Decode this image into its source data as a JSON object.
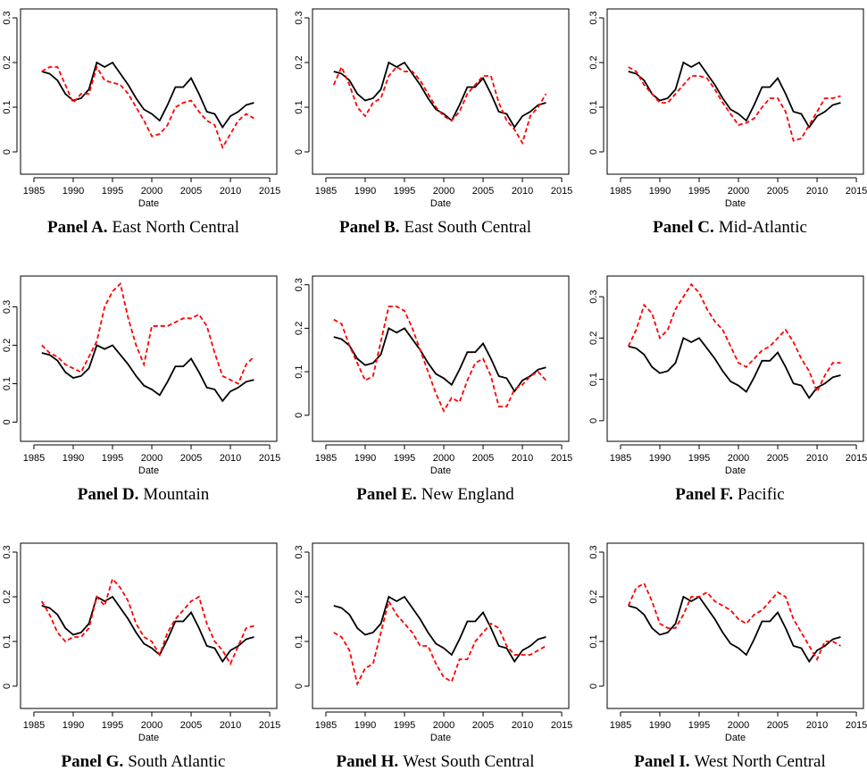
{
  "chart_data": [
    {
      "type": "line",
      "panel": "Panel A.",
      "title": "East North Central",
      "xlabel": "Date",
      "x": [
        1986,
        1987,
        1988,
        1989,
        1990,
        1991,
        1992,
        1993,
        1994,
        1995,
        1996,
        1997,
        1998,
        1999,
        2000,
        2001,
        2002,
        2003,
        2004,
        2005,
        2006,
        2007,
        2008,
        2009,
        2010,
        2011,
        2012,
        2013
      ],
      "series": [
        {
          "color": "#000000",
          "style": "solid",
          "values": [
            0.18,
            0.175,
            0.16,
            0.13,
            0.115,
            0.12,
            0.14,
            0.2,
            0.19,
            0.2,
            0.175,
            0.15,
            0.12,
            0.095,
            0.085,
            0.07,
            0.105,
            0.145,
            0.145,
            0.165,
            0.13,
            0.09,
            0.085,
            0.055,
            0.08,
            0.09,
            0.105,
            0.11
          ]
        },
        {
          "color": "#ff0000",
          "style": "dashed",
          "values": [
            0.18,
            0.19,
            0.19,
            0.15,
            0.11,
            0.13,
            0.13,
            0.19,
            0.16,
            0.155,
            0.15,
            0.13,
            0.1,
            0.07,
            0.035,
            0.04,
            0.06,
            0.1,
            0.11,
            0.115,
            0.09,
            0.07,
            0.06,
            0.01,
            0.04,
            0.07,
            0.085,
            0.075
          ]
        }
      ],
      "xlim": [
        1983.3,
        2015.9
      ],
      "ylim": [
        -0.05,
        0.32
      ],
      "xticks": [
        1985,
        1990,
        1995,
        2000,
        2005,
        2010,
        2015
      ],
      "yticks": [
        0,
        0.1,
        0.2,
        0.3
      ]
    },
    {
      "type": "line",
      "panel": "Panel B.",
      "title": "East South Central",
      "xlabel": "Date",
      "x": [
        1986,
        1987,
        1988,
        1989,
        1990,
        1991,
        1992,
        1993,
        1994,
        1995,
        1996,
        1997,
        1998,
        1999,
        2000,
        2001,
        2002,
        2003,
        2004,
        2005,
        2006,
        2007,
        2008,
        2009,
        2010,
        2011,
        2012,
        2013
      ],
      "series": [
        {
          "color": "#000000",
          "style": "solid",
          "values": [
            0.18,
            0.175,
            0.16,
            0.13,
            0.115,
            0.12,
            0.14,
            0.2,
            0.19,
            0.2,
            0.175,
            0.15,
            0.12,
            0.095,
            0.085,
            0.07,
            0.105,
            0.145,
            0.145,
            0.165,
            0.13,
            0.09,
            0.085,
            0.055,
            0.08,
            0.09,
            0.105,
            0.11
          ]
        },
        {
          "color": "#ff0000",
          "style": "dashed",
          "values": [
            0.15,
            0.19,
            0.15,
            0.1,
            0.08,
            0.11,
            0.12,
            0.17,
            0.19,
            0.18,
            0.18,
            0.16,
            0.13,
            0.1,
            0.08,
            0.07,
            0.09,
            0.13,
            0.15,
            0.17,
            0.17,
            0.11,
            0.07,
            0.05,
            0.02,
            0.08,
            0.1,
            0.13
          ]
        }
      ],
      "xlim": [
        1983.3,
        2015.9
      ],
      "ylim": [
        -0.05,
        0.32
      ],
      "xticks": [
        1985,
        1990,
        1995,
        2000,
        2005,
        2010,
        2015
      ],
      "yticks": [
        0,
        0.1,
        0.2,
        0.3
      ]
    },
    {
      "type": "line",
      "panel": "Panel C.",
      "title": "Mid-Atlantic",
      "xlabel": "Date",
      "x": [
        1986,
        1987,
        1988,
        1989,
        1990,
        1991,
        1992,
        1993,
        1994,
        1995,
        1996,
        1997,
        1998,
        1999,
        2000,
        2001,
        2002,
        2003,
        2004,
        2005,
        2006,
        2007,
        2008,
        2009,
        2010,
        2011,
        2012,
        2013
      ],
      "series": [
        {
          "color": "#000000",
          "style": "solid",
          "values": [
            0.18,
            0.175,
            0.16,
            0.13,
            0.115,
            0.12,
            0.14,
            0.2,
            0.19,
            0.2,
            0.175,
            0.15,
            0.12,
            0.095,
            0.085,
            0.07,
            0.105,
            0.145,
            0.145,
            0.165,
            0.13,
            0.09,
            0.085,
            0.055,
            0.08,
            0.09,
            0.105,
            0.11
          ]
        },
        {
          "color": "#ff0000",
          "style": "dashed",
          "values": [
            0.19,
            0.18,
            0.15,
            0.13,
            0.11,
            0.11,
            0.13,
            0.15,
            0.17,
            0.17,
            0.165,
            0.14,
            0.11,
            0.085,
            0.06,
            0.065,
            0.075,
            0.1,
            0.12,
            0.12,
            0.09,
            0.025,
            0.03,
            0.06,
            0.09,
            0.12,
            0.12,
            0.125
          ]
        }
      ],
      "xlim": [
        1983.3,
        2015.9
      ],
      "ylim": [
        -0.05,
        0.32
      ],
      "xticks": [
        1985,
        1990,
        1995,
        2000,
        2005,
        2010,
        2015
      ],
      "yticks": [
        0,
        0.1,
        0.2,
        0.3
      ]
    },
    {
      "type": "line",
      "panel": "Panel D.",
      "title": "Mountain",
      "xlabel": "Date",
      "x": [
        1986,
        1987,
        1988,
        1989,
        1990,
        1991,
        1992,
        1993,
        1994,
        1995,
        1996,
        1997,
        1998,
        1999,
        2000,
        2001,
        2002,
        2003,
        2004,
        2005,
        2006,
        2007,
        2008,
        2009,
        2010,
        2011,
        2012,
        2013
      ],
      "series": [
        {
          "color": "#000000",
          "style": "solid",
          "values": [
            0.18,
            0.175,
            0.16,
            0.13,
            0.115,
            0.12,
            0.14,
            0.2,
            0.19,
            0.2,
            0.175,
            0.15,
            0.12,
            0.095,
            0.085,
            0.07,
            0.105,
            0.145,
            0.145,
            0.165,
            0.13,
            0.09,
            0.085,
            0.055,
            0.08,
            0.09,
            0.105,
            0.11
          ]
        },
        {
          "color": "#ff0000",
          "style": "dashed",
          "values": [
            0.2,
            0.18,
            0.17,
            0.15,
            0.14,
            0.13,
            0.17,
            0.21,
            0.3,
            0.34,
            0.36,
            0.27,
            0.2,
            0.15,
            0.25,
            0.25,
            0.25,
            0.26,
            0.27,
            0.27,
            0.28,
            0.25,
            0.18,
            0.12,
            0.11,
            0.1,
            0.15,
            0.17
          ]
        }
      ],
      "xlim": [
        1983.3,
        2015.9
      ],
      "ylim": [
        -0.05,
        0.38
      ],
      "xticks": [
        1985,
        1990,
        1995,
        2000,
        2005,
        2010,
        2015
      ],
      "yticks": [
        0,
        0.1,
        0.2,
        0.3
      ]
    },
    {
      "type": "line",
      "panel": "Panel E.",
      "title": "New England",
      "xlabel": "Date",
      "x": [
        1986,
        1987,
        1988,
        1989,
        1990,
        1991,
        1992,
        1993,
        1994,
        1995,
        1996,
        1997,
        1998,
        1999,
        2000,
        2001,
        2002,
        2003,
        2004,
        2005,
        2006,
        2007,
        2008,
        2009,
        2010,
        2011,
        2012,
        2013
      ],
      "series": [
        {
          "color": "#000000",
          "style": "solid",
          "values": [
            0.18,
            0.175,
            0.16,
            0.13,
            0.115,
            0.12,
            0.14,
            0.2,
            0.19,
            0.2,
            0.175,
            0.15,
            0.12,
            0.095,
            0.085,
            0.07,
            0.105,
            0.145,
            0.145,
            0.165,
            0.13,
            0.09,
            0.085,
            0.055,
            0.08,
            0.09,
            0.105,
            0.11
          ]
        },
        {
          "color": "#ff0000",
          "style": "dashed",
          "values": [
            0.22,
            0.21,
            0.16,
            0.12,
            0.08,
            0.09,
            0.17,
            0.25,
            0.25,
            0.24,
            0.2,
            0.15,
            0.1,
            0.05,
            0.01,
            0.04,
            0.03,
            0.08,
            0.12,
            0.13,
            0.09,
            0.02,
            0.02,
            0.06,
            0.07,
            0.09,
            0.1,
            0.08
          ]
        }
      ],
      "xlim": [
        1983.3,
        2015.9
      ],
      "ylim": [
        -0.06,
        0.32
      ],
      "xticks": [
        1985,
        1990,
        1995,
        2000,
        2005,
        2010,
        2015
      ],
      "yticks": [
        0,
        0.1,
        0.2,
        0.3
      ]
    },
    {
      "type": "line",
      "panel": "Panel F.",
      "title": "Pacific",
      "xlabel": "Date",
      "x": [
        1986,
        1987,
        1988,
        1989,
        1990,
        1991,
        1992,
        1993,
        1994,
        1995,
        1996,
        1997,
        1998,
        1999,
        2000,
        2001,
        2002,
        2003,
        2004,
        2005,
        2006,
        2007,
        2008,
        2009,
        2010,
        2011,
        2012,
        2013
      ],
      "series": [
        {
          "color": "#000000",
          "style": "solid",
          "values": [
            0.18,
            0.175,
            0.16,
            0.13,
            0.115,
            0.12,
            0.14,
            0.2,
            0.19,
            0.2,
            0.175,
            0.15,
            0.12,
            0.095,
            0.085,
            0.07,
            0.105,
            0.145,
            0.145,
            0.165,
            0.13,
            0.09,
            0.085,
            0.055,
            0.08,
            0.09,
            0.105,
            0.11
          ]
        },
        {
          "color": "#ff0000",
          "style": "dashed",
          "values": [
            0.18,
            0.22,
            0.28,
            0.26,
            0.2,
            0.22,
            0.27,
            0.3,
            0.33,
            0.31,
            0.27,
            0.24,
            0.22,
            0.18,
            0.14,
            0.13,
            0.15,
            0.17,
            0.18,
            0.2,
            0.22,
            0.19,
            0.15,
            0.12,
            0.07,
            0.11,
            0.14,
            0.14
          ]
        }
      ],
      "xlim": [
        1983.3,
        2015.9
      ],
      "ylim": [
        -0.05,
        0.35
      ],
      "xticks": [
        1985,
        1990,
        1995,
        2000,
        2005,
        2010,
        2015
      ],
      "yticks": [
        0,
        0.1,
        0.2,
        0.3
      ]
    },
    {
      "type": "line",
      "panel": "Panel G.",
      "title": "South Atlantic",
      "xlabel": "Date",
      "x": [
        1986,
        1987,
        1988,
        1989,
        1990,
        1991,
        1992,
        1993,
        1994,
        1995,
        1996,
        1997,
        1998,
        1999,
        2000,
        2001,
        2002,
        2003,
        2004,
        2005,
        2006,
        2007,
        2008,
        2009,
        2010,
        2011,
        2012,
        2013
      ],
      "series": [
        {
          "color": "#000000",
          "style": "solid",
          "values": [
            0.18,
            0.175,
            0.16,
            0.13,
            0.115,
            0.12,
            0.14,
            0.2,
            0.19,
            0.2,
            0.175,
            0.15,
            0.12,
            0.095,
            0.085,
            0.07,
            0.105,
            0.145,
            0.145,
            0.165,
            0.13,
            0.09,
            0.085,
            0.055,
            0.08,
            0.09,
            0.105,
            0.11
          ]
        },
        {
          "color": "#ff0000",
          "style": "dashed",
          "values": [
            0.19,
            0.16,
            0.12,
            0.1,
            0.11,
            0.11,
            0.13,
            0.2,
            0.18,
            0.24,
            0.22,
            0.19,
            0.14,
            0.11,
            0.1,
            0.07,
            0.12,
            0.15,
            0.17,
            0.19,
            0.2,
            0.14,
            0.1,
            0.08,
            0.05,
            0.09,
            0.13,
            0.135
          ]
        }
      ],
      "xlim": [
        1983.3,
        2015.9
      ],
      "ylim": [
        -0.05,
        0.32
      ],
      "xticks": [
        1985,
        1990,
        1995,
        2000,
        2005,
        2010,
        2015
      ],
      "yticks": [
        0,
        0.1,
        0.2,
        0.3
      ]
    },
    {
      "type": "line",
      "panel": "Panel H.",
      "title": "West South Central",
      "xlabel": "Date",
      "x": [
        1986,
        1987,
        1988,
        1989,
        1990,
        1991,
        1992,
        1993,
        1994,
        1995,
        1996,
        1997,
        1998,
        1999,
        2000,
        2001,
        2002,
        2003,
        2004,
        2005,
        2006,
        2007,
        2008,
        2009,
        2010,
        2011,
        2012,
        2013
      ],
      "series": [
        {
          "color": "#000000",
          "style": "solid",
          "values": [
            0.18,
            0.175,
            0.16,
            0.13,
            0.115,
            0.12,
            0.14,
            0.2,
            0.19,
            0.2,
            0.175,
            0.15,
            0.12,
            0.095,
            0.085,
            0.07,
            0.105,
            0.145,
            0.145,
            0.165,
            0.13,
            0.09,
            0.085,
            0.055,
            0.08,
            0.09,
            0.105,
            0.11
          ]
        },
        {
          "color": "#ff0000",
          "style": "dashed",
          "values": [
            0.12,
            0.11,
            0.08,
            0.005,
            0.04,
            0.05,
            0.12,
            0.19,
            0.16,
            0.14,
            0.12,
            0.09,
            0.09,
            0.05,
            0.02,
            0.01,
            0.06,
            0.06,
            0.1,
            0.12,
            0.14,
            0.13,
            0.09,
            0.07,
            0.07,
            0.07,
            0.08,
            0.09
          ]
        }
      ],
      "xlim": [
        1983.3,
        2015.9
      ],
      "ylim": [
        -0.05,
        0.32
      ],
      "xticks": [
        1985,
        1990,
        1995,
        2000,
        2005,
        2010,
        2015
      ],
      "yticks": [
        0,
        0.1,
        0.2,
        0.3
      ]
    },
    {
      "type": "line",
      "panel": "Panel I.",
      "title": "West North Central",
      "xlabel": "Date",
      "x": [
        1986,
        1987,
        1988,
        1989,
        1990,
        1991,
        1992,
        1993,
        1994,
        1995,
        1996,
        1997,
        1998,
        1999,
        2000,
        2001,
        2002,
        2003,
        2004,
        2005,
        2006,
        2007,
        2008,
        2009,
        2010,
        2011,
        2012,
        2013
      ],
      "series": [
        {
          "color": "#000000",
          "style": "solid",
          "values": [
            0.18,
            0.175,
            0.16,
            0.13,
            0.115,
            0.12,
            0.14,
            0.2,
            0.19,
            0.2,
            0.175,
            0.15,
            0.12,
            0.095,
            0.085,
            0.07,
            0.105,
            0.145,
            0.145,
            0.165,
            0.13,
            0.09,
            0.085,
            0.055,
            0.08,
            0.09,
            0.105,
            0.11
          ]
        },
        {
          "color": "#ff0000",
          "style": "dashed",
          "values": [
            0.18,
            0.22,
            0.23,
            0.19,
            0.14,
            0.13,
            0.13,
            0.16,
            0.2,
            0.2,
            0.21,
            0.19,
            0.18,
            0.17,
            0.15,
            0.14,
            0.16,
            0.17,
            0.19,
            0.21,
            0.2,
            0.15,
            0.12,
            0.09,
            0.06,
            0.1,
            0.1,
            0.09
          ]
        }
      ],
      "xlim": [
        1983.3,
        2015.9
      ],
      "ylim": [
        -0.05,
        0.32
      ],
      "xticks": [
        1985,
        1990,
        1995,
        2000,
        2005,
        2010,
        2015
      ],
      "yticks": [
        0,
        0.1,
        0.2,
        0.3
      ]
    }
  ]
}
